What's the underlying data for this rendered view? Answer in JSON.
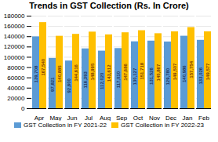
{
  "chart_data": {
    "type": "bar",
    "title": "Trends in GST Collection (Rs. In Crore)",
    "categories": [
      "Apr",
      "May",
      "Jun",
      "Jul",
      "Aug",
      "Sep",
      "Oct",
      "Nov",
      "Dec",
      "Jan",
      "Feb"
    ],
    "series": [
      {
        "name": "GST Collection in FY 2021-22",
        "color": "#5b9bd5",
        "values": [
          139708,
          97821,
          92800,
          116393,
          112020,
          117010,
          130127,
          131526,
          129780,
          140986,
          133026
        ],
        "value_labels": [
          "139,708",
          "97,821",
          "92,800",
          "116,393",
          "112,020",
          "117,010",
          "130,127",
          "131,526",
          "129,780",
          "140,986",
          "133,026"
        ]
      },
      {
        "name": "GST Collection in FY 2022-23",
        "color": "#ffc000",
        "values": [
          167540,
          140885,
          144616,
          148995,
          143612,
          147686,
          151718,
          145867,
          149507,
          157754,
          149577
        ],
        "value_labels": [
          "167,540",
          "140,885",
          "144,616",
          "148,995",
          "143,612",
          "147,686",
          "151,718",
          "145,867",
          "149,507",
          "157,754",
          "149,577"
        ]
      }
    ],
    "ylim": [
      0,
      180000
    ],
    "yticks": [
      0,
      20000,
      40000,
      60000,
      80000,
      100000,
      120000,
      140000,
      160000,
      180000
    ],
    "grid": true,
    "legend": "bottom",
    "data_labels": true
  }
}
